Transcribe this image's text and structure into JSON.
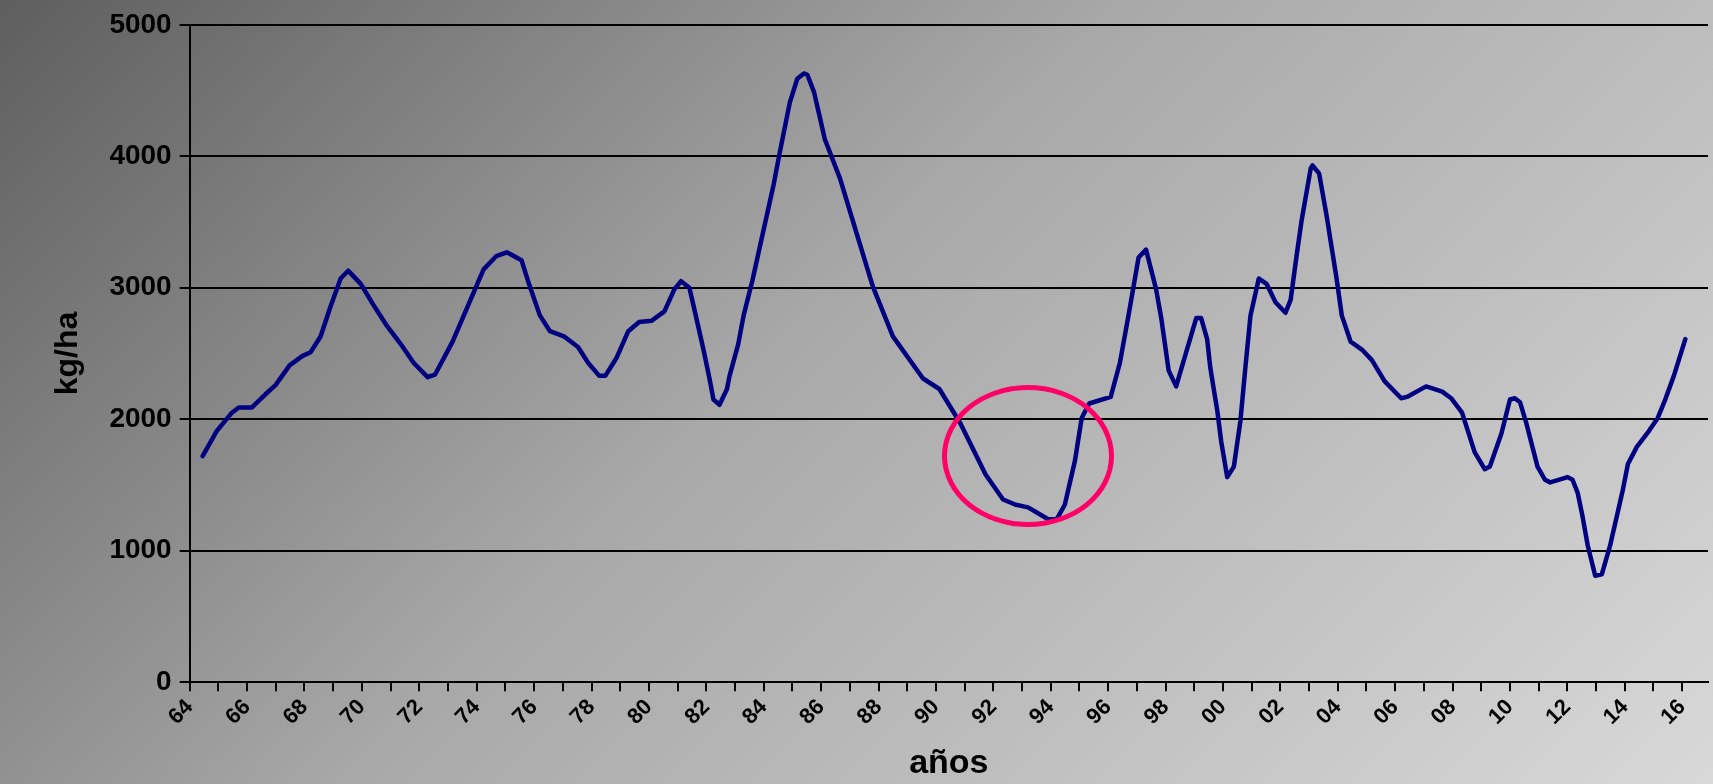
{
  "chart_data": {
    "type": "line",
    "xlabel": "años",
    "ylabel": "kg/ha",
    "xlim": [
      1964,
      2016.9
    ],
    "ylim": [
      0,
      5000
    ],
    "yticks": [
      0,
      1000,
      2000,
      3000,
      4000,
      5000
    ],
    "xticks": [
      {
        "value": 1964,
        "label": "64"
      },
      {
        "value": 1965,
        "label": null
      },
      {
        "value": 1966,
        "label": "66"
      },
      {
        "value": 1967,
        "label": null
      },
      {
        "value": 1968,
        "label": "68"
      },
      {
        "value": 1969,
        "label": null
      },
      {
        "value": 1970,
        "label": "70"
      },
      {
        "value": 1971,
        "label": null
      },
      {
        "value": 1972,
        "label": "72"
      },
      {
        "value": 1973,
        "label": null
      },
      {
        "value": 1974,
        "label": "74"
      },
      {
        "value": 1975,
        "label": null
      },
      {
        "value": 1976,
        "label": "76"
      },
      {
        "value": 1977,
        "label": null
      },
      {
        "value": 1978,
        "label": "78"
      },
      {
        "value": 1979,
        "label": null
      },
      {
        "value": 1980,
        "label": "80"
      },
      {
        "value": 1981,
        "label": null
      },
      {
        "value": 1982,
        "label": "82"
      },
      {
        "value": 1983,
        "label": null
      },
      {
        "value": 1984,
        "label": "84"
      },
      {
        "value": 1985,
        "label": null
      },
      {
        "value": 1986,
        "label": "86"
      },
      {
        "value": 1987,
        "label": null
      },
      {
        "value": 1988,
        "label": "88"
      },
      {
        "value": 1989,
        "label": null
      },
      {
        "value": 1990,
        "label": "90"
      },
      {
        "value": 1991,
        "label": null
      },
      {
        "value": 1992,
        "label": "92"
      },
      {
        "value": 1993,
        "label": null
      },
      {
        "value": 1994,
        "label": "94"
      },
      {
        "value": 1995,
        "label": null
      },
      {
        "value": 1996,
        "label": "96"
      },
      {
        "value": 1997,
        "label": null
      },
      {
        "value": 1998,
        "label": "98"
      },
      {
        "value": 1999,
        "label": null
      },
      {
        "value": 2000,
        "label": "00"
      },
      {
        "value": 2001,
        "label": null
      },
      {
        "value": 2002,
        "label": "02"
      },
      {
        "value": 2003,
        "label": null
      },
      {
        "value": 2004,
        "label": "04"
      },
      {
        "value": 2005,
        "label": null
      },
      {
        "value": 2006,
        "label": "06"
      },
      {
        "value": 2007,
        "label": null
      },
      {
        "value": 2008,
        "label": "08"
      },
      {
        "value": 2009,
        "label": null
      },
      {
        "value": 2010,
        "label": "10"
      },
      {
        "value": 2011,
        "label": null
      },
      {
        "value": 2012,
        "label": "12"
      },
      {
        "value": 2013,
        "label": null
      },
      {
        "value": 2014,
        "label": "14"
      },
      {
        "value": 2015,
        "label": null
      },
      {
        "value": 2016,
        "label": "16"
      }
    ],
    "grid": "y",
    "legend": false,
    "marker": "none",
    "line_style": "solid",
    "x": [
      1964.45,
      1964.94,
      1965.47,
      1965.71,
      1966.17,
      1966.64,
      1966.99,
      1967.48,
      1967.92,
      1968.21,
      1968.56,
      1968.91,
      1969.26,
      1969.52,
      1969.96,
      1970.4,
      1970.84,
      1971.36,
      1971.8,
      1972.29,
      1972.55,
      1973.16,
      1973.63,
      1974.24,
      1974.68,
      1975.05,
      1975.56,
      1975.82,
      1976.2,
      1976.55,
      1977.04,
      1977.53,
      1977.88,
      1978.27,
      1978.48,
      1978.88,
      1979.28,
      1979.66,
      1980.1,
      1980.54,
      1980.89,
      1981.12,
      1981.41,
      1981.59,
      1981.9,
      1982.11,
      1982.25,
      1982.46,
      1982.72,
      1982.81,
      1983.11,
      1983.3,
      1983.6,
      1984.35,
      1984.56,
      1984.91,
      1985.17,
      1985.4,
      1985.52,
      1985.75,
      1986.13,
      1986.66,
      1987.27,
      1987.8,
      1988.5,
      1989.55,
      1990.12,
      1990.85,
      1991.73,
      1992.34,
      1992.78,
      1993.21,
      1993.91,
      1994.21,
      1994.49,
      1994.84,
      1995.08,
      1995.34,
      1996.09,
      1996.41,
      1996.71,
      1997.06,
      1997.32,
      1997.67,
      1997.85,
      1998.11,
      1998.37,
      1998.72,
      1999.07,
      1999.24,
      1999.45,
      1999.56,
      1999.8,
      1999.94,
      2000.15,
      2000.38,
      2000.61,
      2000.78,
      2000.96,
      2001.25,
      2001.52,
      2001.83,
      2002.18,
      2002.36,
      2002.57,
      2002.74,
      2003.06,
      2003.12,
      2003.35,
      2003.61,
      2003.96,
      2004.14,
      2004.45,
      2004.84,
      2005.19,
      2005.63,
      2006.21,
      2006.41,
      2007.08,
      2007.64,
      2007.95,
      2008.33,
      2008.77,
      2009.12,
      2009.3,
      2009.7,
      2010,
      2010.17,
      2010.35,
      2010.57,
      2010.96,
      2011.22,
      2011.4,
      2012.01,
      2012.18,
      2012.36,
      2012.53,
      2012.71,
      2012.97,
      2013.2,
      2013.49,
      2013.93,
      2014.11,
      2014.42,
      2014.84,
      2015.15,
      2015.41,
      2015.71,
      2016.11
    ],
    "series": [
      {
        "color": "#000080",
        "values": [
          1720,
          1910,
          2050,
          2090,
          2090,
          2190,
          2260,
          2410,
          2480,
          2510,
          2630,
          2860,
          3070,
          3130,
          3030,
          2870,
          2720,
          2570,
          2430,
          2320,
          2340,
          2590,
          2830,
          3140,
          3240,
          3270,
          3210,
          3030,
          2790,
          2670,
          2630,
          2550,
          2430,
          2330,
          2330,
          2470,
          2670,
          2740,
          2750,
          2820,
          2990,
          3050,
          3000,
          2830,
          2530,
          2310,
          2150,
          2110,
          2230,
          2330,
          2570,
          2790,
          3050,
          3790,
          4030,
          4410,
          4590,
          4630,
          4620,
          4490,
          4130,
          3830,
          3390,
          3010,
          2630,
          2310,
          2230,
          1970,
          1580,
          1390,
          1350,
          1330,
          1240,
          1240,
          1350,
          1680,
          2010,
          2120,
          2170,
          2430,
          2790,
          3230,
          3290,
          2990,
          2770,
          2370,
          2250,
          2510,
          2770,
          2770,
          2610,
          2390,
          2070,
          1830,
          1560,
          1640,
          1990,
          2390,
          2790,
          3070,
          3030,
          2890,
          2810,
          2910,
          3250,
          3510,
          3910,
          3930,
          3870,
          3550,
          3070,
          2790,
          2590,
          2530,
          2450,
          2290,
          2160,
          2170,
          2250,
          2210,
          2160,
          2050,
          1750,
          1620,
          1640,
          1890,
          2150,
          2160,
          2130,
          1970,
          1640,
          1540,
          1520,
          1560,
          1540,
          1440,
          1260,
          1040,
          810,
          820,
          1040,
          1460,
          1660,
          1790,
          1910,
          2010,
          2150,
          2330,
          2610
        ]
      }
    ]
  }
}
